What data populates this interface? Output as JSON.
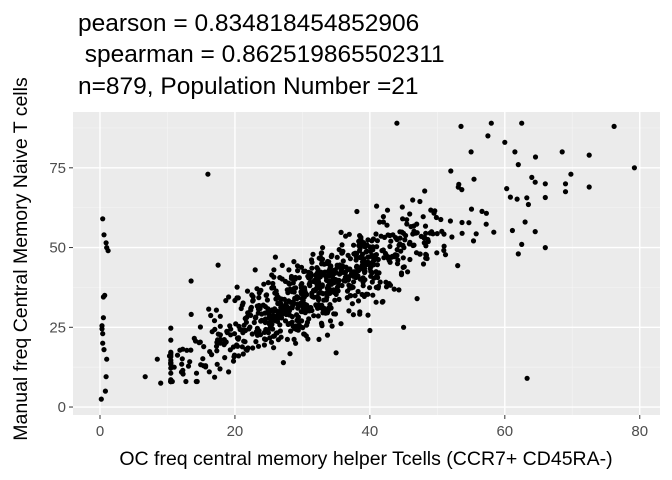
{
  "chart_data": {
    "type": "scatter",
    "title_lines": [
      "pearson = 0.834818454852906",
      " spearman = 0.862519865502311",
      "n=879, Population Number =21"
    ],
    "xlabel": "OC freq central memory helper Tcells (CCR7+ CD45RA-)",
    "ylabel": "Manual freq Central Memory Naive T cells",
    "xlim": [
      -4.0,
      83.0
    ],
    "ylim": [
      -2.5,
      92.5
    ],
    "x_ticks": [
      0,
      20,
      40,
      60,
      80
    ],
    "y_ticks": [
      0,
      25,
      50,
      75
    ],
    "x_minor": [
      10,
      30,
      50,
      70
    ],
    "y_minor": [
      12.5,
      37.5,
      62.5,
      87.5
    ],
    "grid": true,
    "panel_background": "#ebebeb",
    "point_color": "#000000",
    "n_points": 879,
    "points": [
      [
        0.2,
        2.5
      ],
      [
        0.4,
        20
      ],
      [
        0.3,
        24.5
      ],
      [
        0.3,
        25.5
      ],
      [
        0.5,
        28
      ],
      [
        0.5,
        34.5
      ],
      [
        0.7,
        35
      ],
      [
        0.4,
        59
      ],
      [
        0.6,
        54
      ],
      [
        0.9,
        51.5
      ],
      [
        1.0,
        50
      ],
      [
        1.2,
        49
      ],
      [
        0.8,
        5
      ],
      [
        0.9,
        9.5
      ],
      [
        1.0,
        15
      ],
      [
        0.6,
        18
      ],
      [
        0.4,
        23
      ],
      [
        6.7,
        9.5
      ],
      [
        8.5,
        15
      ],
      [
        9.0,
        7.5
      ],
      [
        10.3,
        16
      ],
      [
        11.0,
        12.5
      ],
      [
        16.0,
        73
      ],
      [
        17.5,
        44.5
      ],
      [
        13.5,
        39.5
      ],
      [
        44.0,
        89
      ],
      [
        53.5,
        88
      ],
      [
        63.3,
        9
      ],
      [
        79.2,
        75
      ],
      [
        76.2,
        88
      ],
      [
        72.5,
        79
      ],
      [
        72.5,
        69
      ],
      [
        69.8,
        73
      ],
      [
        69.0,
        67.5
      ],
      [
        68.5,
        80
      ],
      [
        69.0,
        70
      ],
      [
        66.0,
        70
      ],
      [
        64.0,
        72
      ],
      [
        62.5,
        89
      ],
      [
        61.5,
        80
      ],
      [
        62.0,
        76
      ],
      [
        63.5,
        63.5
      ],
      [
        63.0,
        58
      ],
      [
        64.5,
        55
      ],
      [
        66.0,
        50
      ],
      [
        62.0,
        48
      ],
      [
        62.5,
        51
      ],
      [
        47.0,
        34
      ],
      [
        45.0,
        25
      ],
      [
        40.0,
        24
      ],
      [
        35.0,
        17
      ],
      [
        33.0,
        50
      ],
      [
        26.0,
        47
      ],
      [
        23.0,
        43
      ],
      [
        28.0,
        43
      ],
      [
        41.0,
        63
      ],
      [
        42.0,
        58
      ],
      [
        52.0,
        74
      ],
      [
        55.0,
        80
      ],
      [
        57.5,
        85
      ],
      [
        58.0,
        89
      ],
      [
        60.0,
        83
      ],
      [
        64.5,
        70.5
      ]
    ]
  }
}
